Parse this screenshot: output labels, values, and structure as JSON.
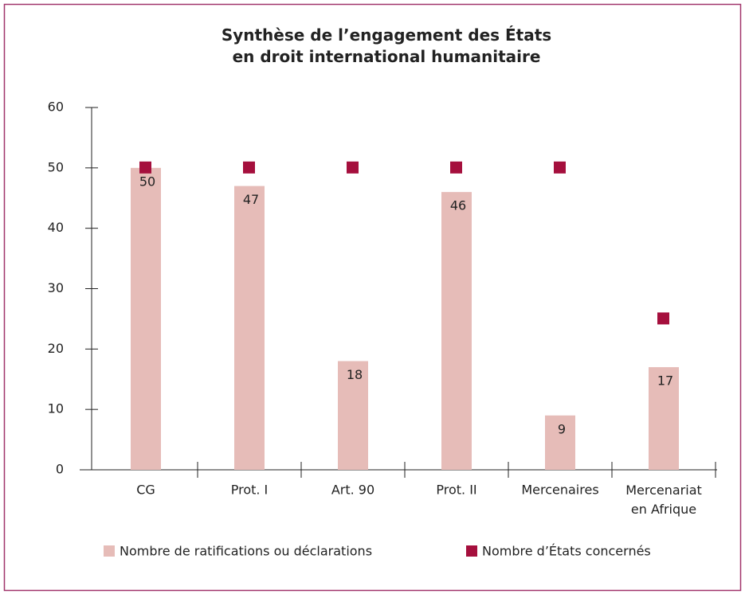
{
  "chart_data": {
    "type": "bar",
    "title": "Synthèse de l’engagement des États\nen droit international humanitaire",
    "categories": [
      "CG",
      "Prot. I",
      "Art. 90",
      "Prot. II",
      "Mercenaires",
      "Mercenariat\nen Afrique"
    ],
    "series": [
      {
        "name": "Nombre de ratifications ou déclarations",
        "type": "bar",
        "color": "#e6bcb8",
        "values": [
          50,
          47,
          18,
          46,
          9,
          17
        ]
      },
      {
        "name": "Nombre d’États concernés",
        "type": "scatter",
        "color": "#a50f3d",
        "values": [
          50,
          50,
          50,
          50,
          50,
          25
        ]
      }
    ],
    "ylim": [
      0,
      60
    ],
    "yticks": [
      0,
      10,
      20,
      30,
      40,
      50,
      60
    ],
    "grid": false
  }
}
